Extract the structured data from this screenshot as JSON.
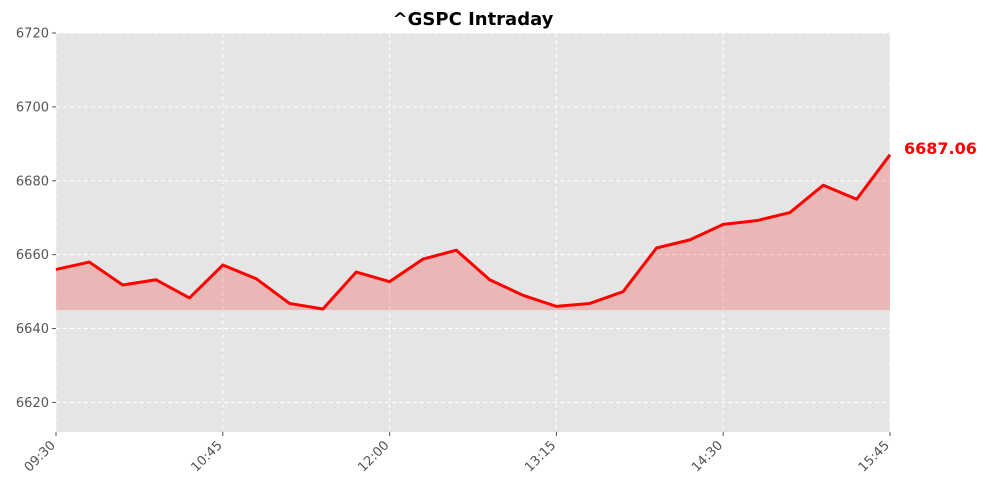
{
  "chart_data": {
    "type": "line",
    "title": "^GSPC Intraday",
    "xlabel": "",
    "ylabel": "",
    "x_ticks": [
      "09:30",
      "10:45",
      "12:00",
      "13:15",
      "14:30",
      "15:45"
    ],
    "x_range_minutes": [
      570,
      945
    ],
    "ylim": [
      6612,
      6720
    ],
    "y_ticks": [
      6620,
      6640,
      6660,
      6680,
      6700,
      6720
    ],
    "grid": true,
    "fill_baseline": 6645,
    "series": [
      {
        "name": "",
        "color": "#ff0000",
        "x": [
          "09:30",
          "09:45",
          "10:00",
          "10:15",
          "10:30",
          "10:45",
          "11:00",
          "11:15",
          "11:30",
          "11:45",
          "12:00",
          "12:15",
          "12:30",
          "12:45",
          "13:00",
          "13:15",
          "13:30",
          "13:45",
          "14:00",
          "14:15",
          "14:30",
          "14:45",
          "15:00",
          "15:15",
          "15:30",
          "15:45"
        ],
        "values": [
          6656.0,
          6658.0,
          6651.8,
          6653.2,
          6648.3,
          6657.2,
          6653.5,
          6646.8,
          6645.3,
          6655.3,
          6652.7,
          6658.8,
          6661.2,
          6653.2,
          6649.0,
          6646.0,
          6646.8,
          6650.0,
          6661.8,
          6664.0,
          6668.2,
          6669.2,
          6671.4,
          6678.8,
          6675.0,
          6687.06
        ]
      }
    ],
    "last_value_label": "6687.06"
  }
}
